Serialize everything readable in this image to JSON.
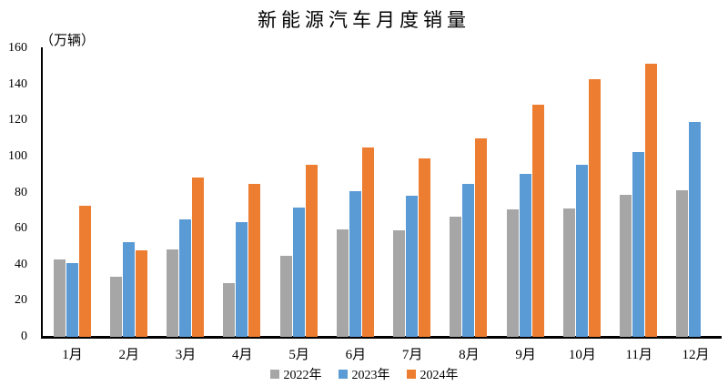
{
  "title": "新能源汽车月度销量",
  "y_axis_unit": "（万辆）",
  "colors": {
    "series_2022": "#A6A6A6",
    "series_2023": "#5B9BD5",
    "series_2024": "#ED7D31",
    "axis": "#000000"
  },
  "chart_data": {
    "type": "bar",
    "title": "新能源汽车月度销量",
    "xlabel": "",
    "ylabel": "（万辆）",
    "ylim": [
      0,
      160
    ],
    "ytick_interval": 20,
    "yticks": [
      0,
      20,
      40,
      60,
      80,
      100,
      120,
      140,
      160
    ],
    "grid": false,
    "legend_position": "bottom",
    "categories": [
      "1月",
      "2月",
      "3月",
      "4月",
      "5月",
      "6月",
      "7月",
      "8月",
      "9月",
      "10月",
      "11月",
      "12月"
    ],
    "series": [
      {
        "name": "2022年",
        "color": "#A6A6A6",
        "values": [
          43.1,
          33.4,
          48.4,
          29.9,
          44.7,
          59.6,
          59.3,
          66.6,
          70.8,
          71.4,
          78.6,
          81.4
        ]
      },
      {
        "name": "2023年",
        "color": "#5B9BD5",
        "values": [
          40.8,
          52.5,
          65.3,
          63.6,
          71.7,
          80.6,
          78.0,
          84.6,
          90.4,
          95.6,
          102.6,
          119.1
        ]
      },
      {
        "name": "2024年",
        "color": "#ED7D31",
        "values": [
          72.9,
          47.7,
          88.3,
          85.0,
          95.5,
          104.9,
          99.1,
          110.0,
          128.7,
          143.0,
          151.2,
          null
        ]
      }
    ]
  }
}
